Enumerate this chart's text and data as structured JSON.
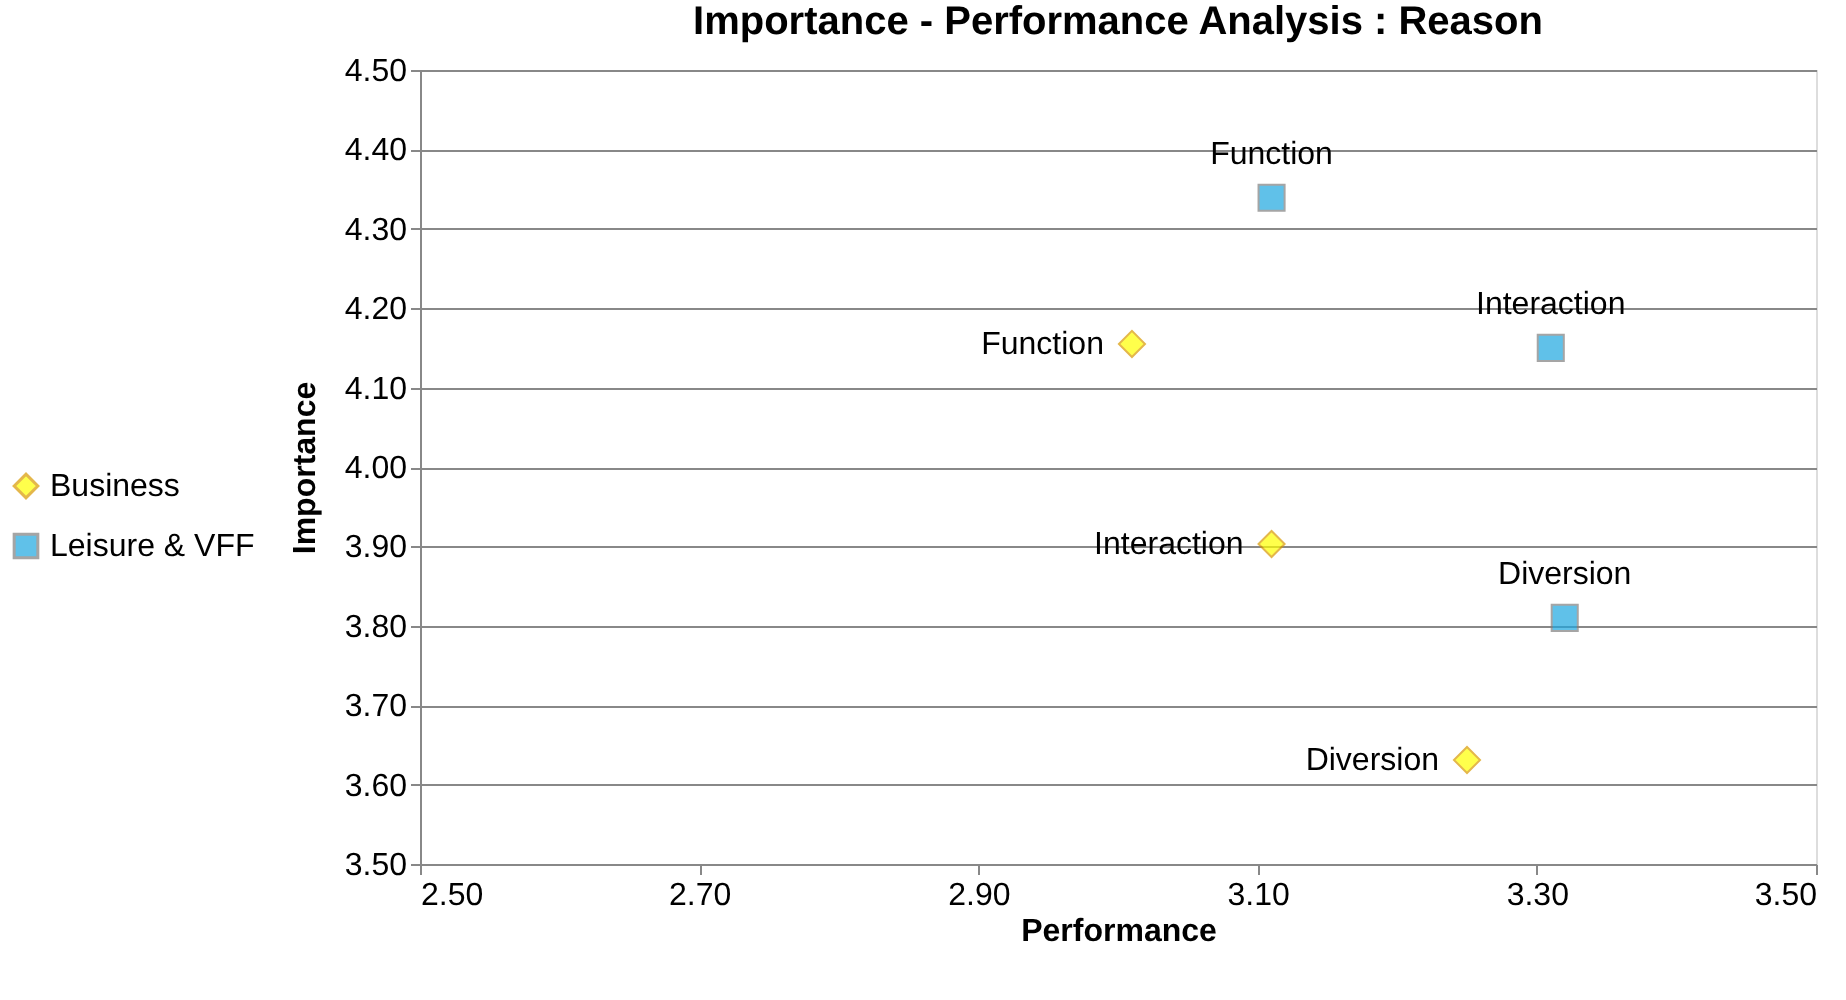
{
  "chart_data": {
    "type": "scatter",
    "title": "Importance - Performance Analysis : Reason",
    "xlabel": "Performance",
    "ylabel": "Importance",
    "xlim": [
      2.5,
      3.5
    ],
    "xticks": [
      {
        "value": 2.5,
        "label": "2.50"
      },
      {
        "value": 2.7,
        "label": "2.70"
      },
      {
        "value": 2.9,
        "label": "2.90"
      },
      {
        "value": 3.1,
        "label": "3.10"
      },
      {
        "value": 3.3,
        "label": "3.30"
      },
      {
        "value": 3.5,
        "label": "3.50"
      }
    ],
    "ylim": [
      3.5,
      4.5
    ],
    "yticks": [
      {
        "value": 3.5,
        "label": "3.50"
      },
      {
        "value": 3.6,
        "label": "3.60"
      },
      {
        "value": 3.7,
        "label": "3.70"
      },
      {
        "value": 3.8,
        "label": "3.80"
      },
      {
        "value": 3.9,
        "label": "3.90"
      },
      {
        "value": 4.0,
        "label": "4.00"
      },
      {
        "value": 4.1,
        "label": "4.10"
      },
      {
        "value": 4.2,
        "label": "4.20"
      },
      {
        "value": 4.3,
        "label": "4.30"
      },
      {
        "value": 4.4,
        "label": "4.40"
      },
      {
        "value": 4.5,
        "label": "4.50"
      }
    ],
    "grid": "y",
    "legend": "left",
    "series": [
      {
        "name": "Business",
        "color": "#ffff00",
        "marker": "diamond",
        "x": [
          3.01,
          3.11,
          3.25
        ],
        "values": [
          4.155,
          3.903,
          3.631
        ],
        "value_labels": [
          "Function",
          "Interaction",
          "Diversion"
        ]
      },
      {
        "name": "Leisure & VFF",
        "color": "#1ea7e1",
        "marker": "square",
        "x": [
          3.11,
          3.31,
          3.32
        ],
        "values": [
          4.339,
          4.15,
          3.81
        ],
        "value_labels": [
          "Function",
          "Interaction",
          "Diversion"
        ]
      }
    ]
  }
}
